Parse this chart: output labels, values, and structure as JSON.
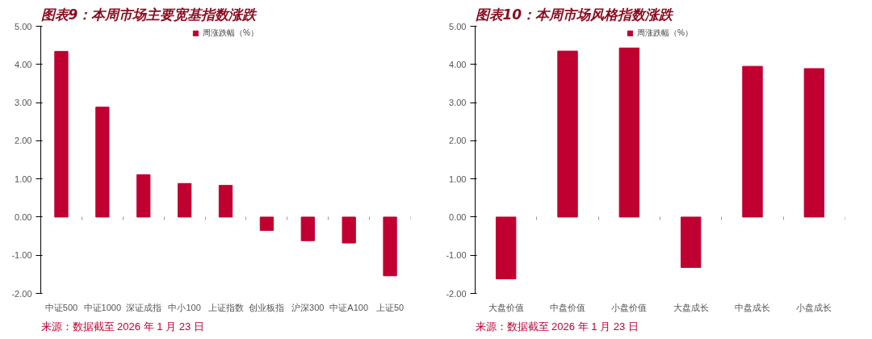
{
  "chart_data": [
    {
      "type": "bar",
      "title": "图表9：本周市场主要宽基指数涨跌",
      "categories": [
        "中证500",
        "中证1000",
        "深证成指",
        "中小100",
        "上证指数",
        "创业板指",
        "沪深300",
        "中证A100",
        "上证50"
      ],
      "series": [
        {
          "name": "周涨跌幅（%）",
          "color": "#c00030",
          "values": [
            4.34,
            2.88,
            1.11,
            0.88,
            0.83,
            -0.35,
            -0.62,
            -0.68,
            -1.54
          ]
        }
      ],
      "ylim": [
        -2,
        5
      ],
      "yticks": [
        {
          "value": -2,
          "label": "-2.00"
        },
        {
          "value": -1,
          "label": "-1.00"
        },
        {
          "value": 0,
          "label": "0.00"
        },
        {
          "value": 1,
          "label": "1.00"
        },
        {
          "value": 2,
          "label": "2.00"
        },
        {
          "value": 3,
          "label": "3.00"
        },
        {
          "value": 4,
          "label": "4.00"
        },
        {
          "value": 5,
          "label": "5.00"
        }
      ],
      "grid": false,
      "legend": "top",
      "annotations": [
        "来源：数据截至 2026 年 1 月 23 日"
      ]
    },
    {
      "type": "bar",
      "title": "图表10：本周市场风格指数涨跌",
      "categories": [
        "大盘价值",
        "中盘价值",
        "小盘价值",
        "大盘成长",
        "中盘成长",
        "小盘成长"
      ],
      "series": [
        {
          "name": "周涨跌幅（%）",
          "color": "#c00030",
          "values": [
            -1.62,
            4.35,
            4.43,
            -1.32,
            3.95,
            3.89
          ]
        }
      ],
      "ylim": [
        -2,
        5
      ],
      "yticks": [
        {
          "value": -2,
          "label": "-2.00"
        },
        {
          "value": -1,
          "label": "-1.00"
        },
        {
          "value": 0,
          "label": "0.00"
        },
        {
          "value": 1,
          "label": "1.00"
        },
        {
          "value": 2,
          "label": "2.00"
        },
        {
          "value": 3,
          "label": "3.00"
        },
        {
          "value": 4,
          "label": "4.00"
        },
        {
          "value": 5,
          "label": "5.00"
        }
      ],
      "grid": false,
      "legend": "top",
      "annotations": [
        "来源：数据截至 2026 年 1 月 23 日"
      ]
    }
  ]
}
